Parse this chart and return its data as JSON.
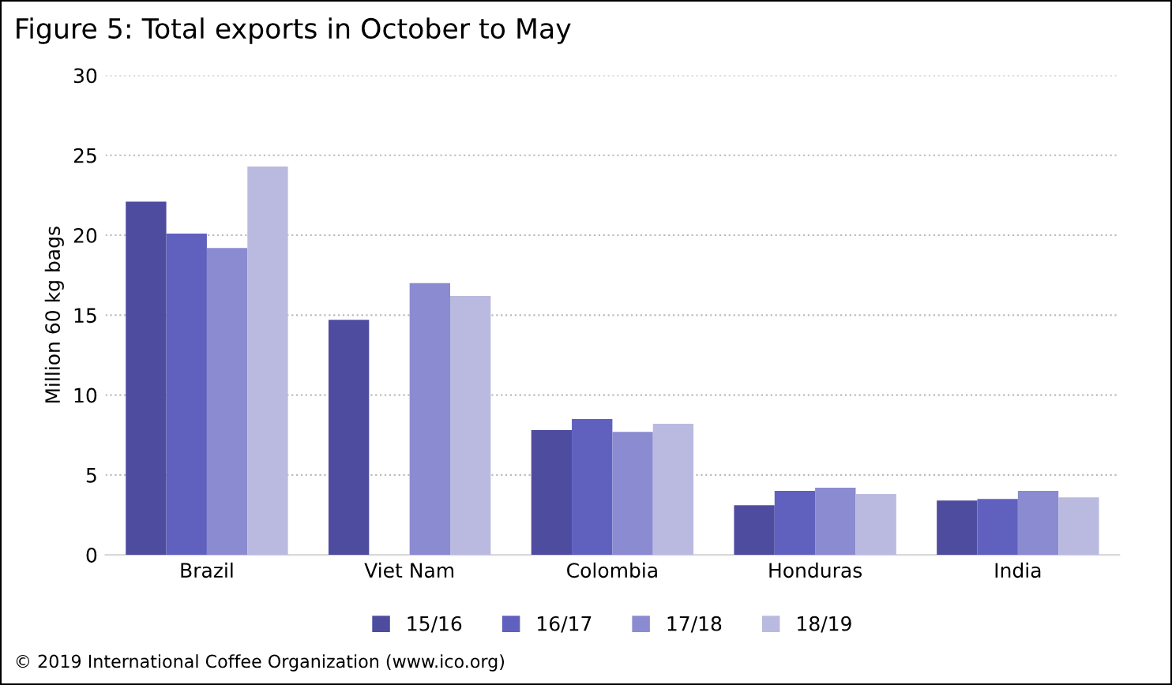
{
  "chart_data": {
    "type": "bar",
    "title": "Figure 5: Total exports in October to May",
    "ylabel": "Million 60 kg bags",
    "categories": [
      "Brazil",
      "Viet Nam",
      "Colombia",
      "Honduras",
      "India"
    ],
    "series": [
      {
        "name": "15/16",
        "color": "#4e4c9f",
        "values": [
          22.1,
          14.7,
          7.8,
          3.1,
          3.4
        ]
      },
      {
        "name": "16/17",
        "color": "#6060bf",
        "values": [
          20.1,
          null,
          8.5,
          4.0,
          3.5
        ]
      },
      {
        "name": "17/18",
        "color": "#8b8bd1",
        "values": [
          19.2,
          17.0,
          7.7,
          4.2,
          4.0
        ]
      },
      {
        "name": "18/19",
        "color": "#babae0",
        "values": [
          24.3,
          16.2,
          8.2,
          3.8,
          3.6
        ]
      }
    ],
    "ylim": [
      0,
      30
    ],
    "yticks": [
      0,
      5,
      10,
      15,
      20,
      25,
      30
    ],
    "grid": "y",
    "legend": "bottom",
    "annotations": [
      "© 2019 International Coffee Organization (www.ico.org)"
    ]
  }
}
